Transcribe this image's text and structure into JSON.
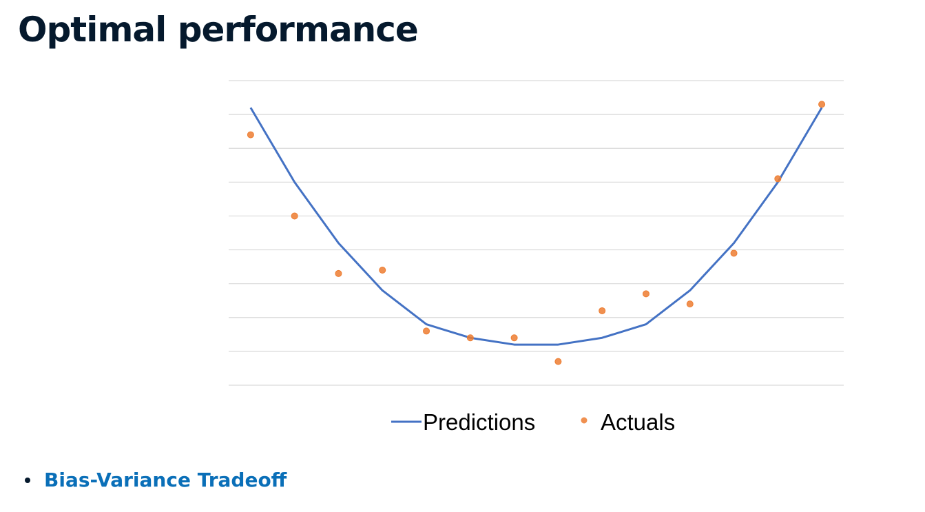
{
  "slide": {
    "title": "Optimal performance"
  },
  "bullets": [
    {
      "label": "Bias-Variance Tradeoff"
    }
  ],
  "colors": {
    "title": "#05192d",
    "link": "#0a6fb8",
    "predictions": "#4472c4",
    "actuals": "#ed7d31",
    "gridline": "#d9d9d9"
  },
  "chart_data": {
    "type": "line",
    "x": [
      1,
      2,
      3,
      4,
      5,
      6,
      7,
      8,
      9,
      10,
      11,
      12,
      13,
      14
    ],
    "ylim": [
      0,
      9
    ],
    "grid": true,
    "legend_position": "bottom",
    "series": [
      {
        "name": "Predictions",
        "type": "line",
        "color": "#4472c4",
        "values": [
          8.2,
          6.0,
          4.2,
          2.8,
          1.8,
          1.4,
          1.2,
          1.2,
          1.4,
          1.8,
          2.8,
          4.2,
          6.0,
          8.2
        ]
      },
      {
        "name": "Actuals",
        "type": "scatter",
        "color": "#ed7d31",
        "values": [
          7.4,
          5.0,
          3.3,
          3.4,
          1.6,
          1.4,
          1.4,
          0.7,
          2.2,
          2.7,
          2.4,
          3.9,
          6.1,
          8.3
        ]
      }
    ]
  }
}
